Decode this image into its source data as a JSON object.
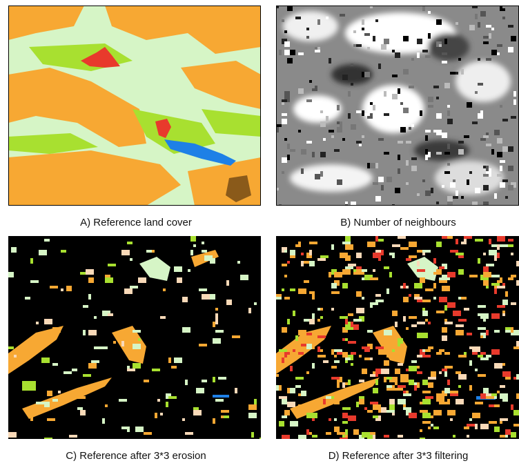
{
  "panels": [
    {
      "caption": "A) Reference land cover"
    },
    {
      "caption": "B) Number of neighbours"
    },
    {
      "caption": "C) Reference after 3*3 erosion"
    },
    {
      "caption": "D) Reference after 3*3 filtering"
    }
  ]
}
